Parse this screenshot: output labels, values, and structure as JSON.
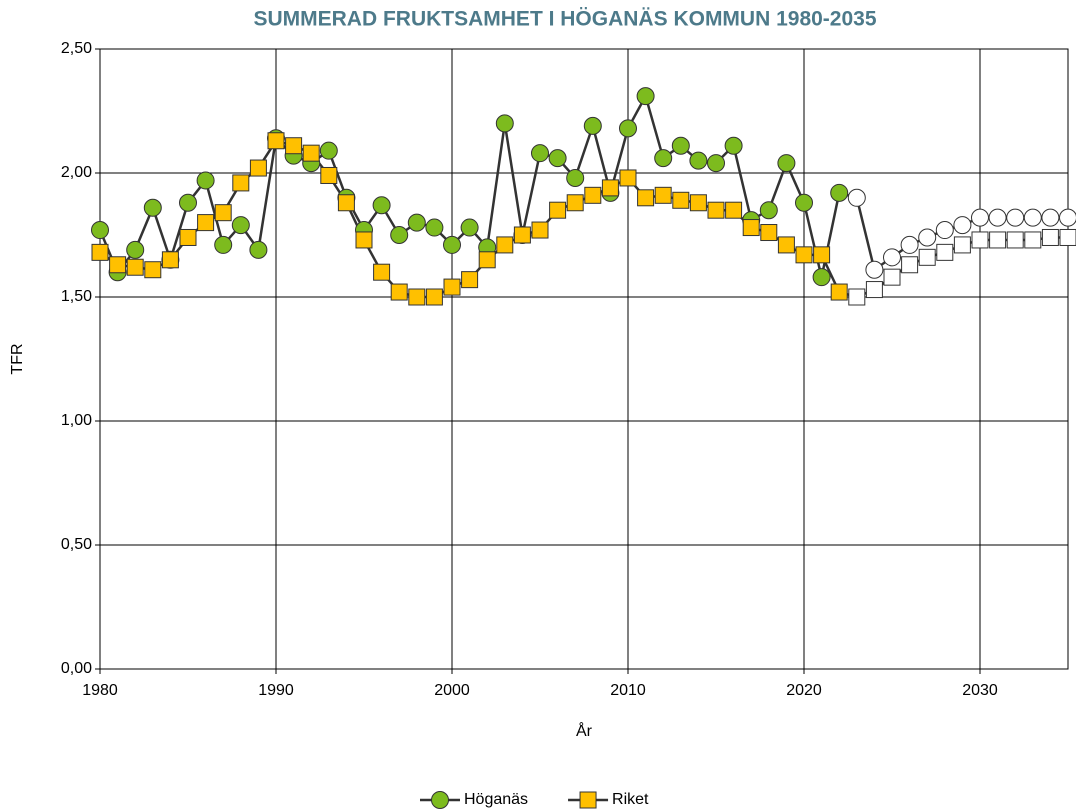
{
  "chart_data": {
    "type": "line",
    "title": "SUMMERAD FRUKTSAMHET I HÖGANÄS KOMMUN 1980-2035",
    "x_label": "År",
    "y_label": "TFR",
    "x": [
      1980,
      1981,
      1982,
      1983,
      1984,
      1985,
      1986,
      1987,
      1988,
      1989,
      1990,
      1991,
      1992,
      1993,
      1994,
      1995,
      1996,
      1997,
      1998,
      1999,
      2000,
      2001,
      2002,
      2003,
      2004,
      2005,
      2006,
      2007,
      2008,
      2009,
      2010,
      2011,
      2012,
      2013,
      2014,
      2015,
      2016,
      2017,
      2018,
      2019,
      2020,
      2021,
      2022,
      2023,
      2024,
      2025,
      2026,
      2027,
      2028,
      2029,
      2030,
      2031,
      2032,
      2033,
      2034,
      2035
    ],
    "series": [
      {
        "name": "Höganäs",
        "color": "#333333",
        "marker": "circle",
        "marker_color": "#7dbb1e",
        "forecast_marker_color": "#ffffff",
        "values": [
          1.77,
          1.6,
          1.69,
          1.86,
          1.65,
          1.88,
          1.97,
          1.71,
          1.79,
          1.69,
          2.14,
          2.07,
          2.04,
          2.09,
          1.9,
          1.77,
          1.87,
          1.75,
          1.8,
          1.78,
          1.71,
          1.78,
          1.7,
          2.2,
          1.75,
          2.08,
          2.06,
          1.98,
          2.19,
          1.92,
          2.18,
          2.31,
          2.06,
          2.11,
          2.05,
          2.04,
          2.11,
          1.81,
          1.85,
          2.04,
          1.88,
          1.58,
          1.92,
          1.9,
          1.61,
          1.66,
          1.71,
          1.74,
          1.77,
          1.79,
          1.82,
          1.82,
          1.82,
          1.82,
          1.82,
          1.82
        ]
      },
      {
        "name": "Riket",
        "color": "#333333",
        "marker": "square",
        "marker_color": "#ffc000",
        "forecast_marker_color": "#ffffff",
        "values": [
          1.68,
          1.63,
          1.62,
          1.61,
          1.65,
          1.74,
          1.8,
          1.84,
          1.96,
          2.02,
          2.13,
          2.11,
          2.08,
          1.99,
          1.88,
          1.73,
          1.6,
          1.52,
          1.5,
          1.5,
          1.54,
          1.57,
          1.65,
          1.71,
          1.75,
          1.77,
          1.85,
          1.88,
          1.91,
          1.94,
          1.98,
          1.9,
          1.91,
          1.89,
          1.88,
          1.85,
          1.85,
          1.78,
          1.76,
          1.71,
          1.67,
          1.67,
          1.52,
          1.5,
          1.53,
          1.58,
          1.63,
          1.66,
          1.68,
          1.71,
          1.73,
          1.73,
          1.73,
          1.73,
          1.74,
          1.74
        ]
      }
    ],
    "forecast_from": 2023,
    "xlim": [
      1980,
      2035
    ],
    "xticks": [
      1980,
      1990,
      2000,
      2010,
      2020,
      2030
    ],
    "ylim": [
      0,
      2.5
    ],
    "yticks": [
      {
        "value": 0,
        "label": "0,00"
      },
      {
        "value": 0.5,
        "label": "0,50"
      },
      {
        "value": 1,
        "label": "1,00"
      },
      {
        "value": 1.5,
        "label": "1,50"
      },
      {
        "value": 2,
        "label": "2,00"
      },
      {
        "value": 2.5,
        "label": "2,50"
      }
    ],
    "grid": true,
    "legend": "bottom"
  }
}
